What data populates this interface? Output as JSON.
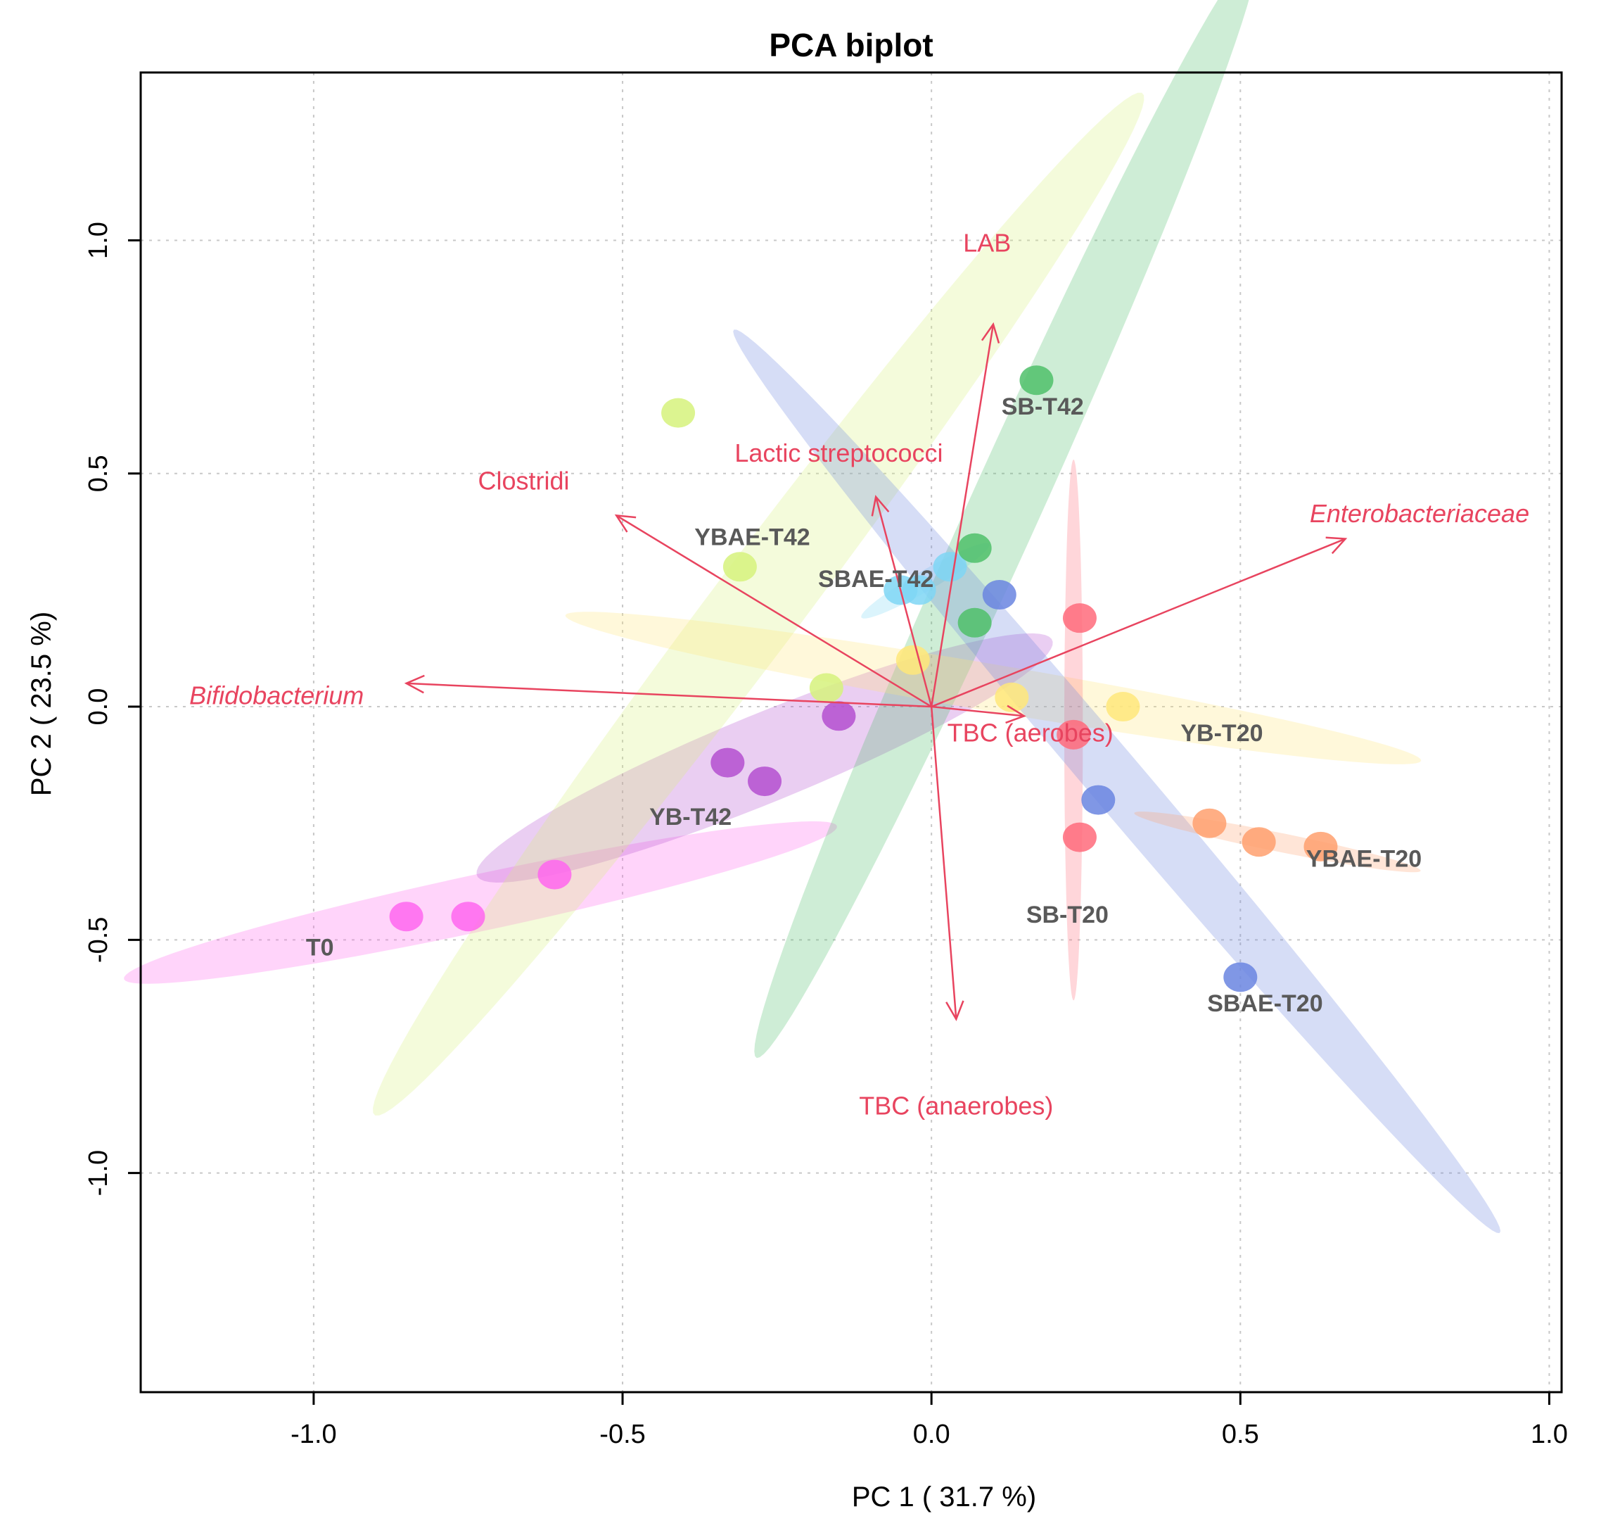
{
  "chart_data": {
    "type": "scatter",
    "subtype": "pca-biplot",
    "title": "PCA biplot",
    "xlabel": "PC 1 ( 31.7 %)",
    "ylabel": "PC 2 ( 23.5 %)",
    "xlim": [
      -1.28,
      1.02
    ],
    "ylim": [
      -1.47,
      1.36
    ],
    "xticks": [
      -1.0,
      -0.5,
      0.0,
      0.5,
      1.0
    ],
    "xtick_labels": [
      "-1.0",
      "-0.5",
      "0.0",
      "0.5",
      "1.0"
    ],
    "yticks": [
      -1.0,
      -0.5,
      0.0,
      0.5,
      1.0
    ],
    "ytick_labels": [
      "-1.0",
      "-0.5",
      "0.0",
      "0.5",
      "1.0"
    ],
    "grid": true,
    "arrow_color": "#e8445f",
    "groups": [
      {
        "name": "T0",
        "color": "#ff66ee",
        "points": [
          [
            -0.85,
            -0.45
          ],
          [
            -0.75,
            -0.45
          ],
          [
            -0.61,
            -0.36
          ]
        ],
        "ellipse": {
          "center": [
            -0.73,
            -0.42
          ],
          "semi_a": 0.6,
          "semi_b": 0.06,
          "angle_deg": 15.9
        },
        "label_pos": [
          -0.99,
          -0.52
        ]
      },
      {
        "name": "YB-T42",
        "color": "#b44fd0",
        "points": [
          [
            -0.33,
            -0.12
          ],
          [
            -0.27,
            -0.16
          ],
          [
            -0.15,
            -0.02
          ]
        ],
        "ellipse": {
          "center": [
            -0.27,
            -0.11
          ],
          "semi_a": 0.53,
          "semi_b": 0.09,
          "angle_deg": 28.8
        },
        "label_pos": [
          -0.39,
          -0.24
        ]
      },
      {
        "name": "YBAE-T42",
        "color": "#d6f27c",
        "points": [
          [
            -0.41,
            0.63
          ],
          [
            -0.31,
            0.3
          ],
          [
            -0.17,
            0.04
          ]
        ],
        "ellipse": {
          "center": [
            -0.28,
            0.22
          ],
          "semi_a": 1.26,
          "semi_b": 0.08,
          "angle_deg": 60.5
        },
        "label_pos": [
          -0.29,
          0.36
        ]
      },
      {
        "name": "SBAE-T42",
        "color": "#7fd6f5",
        "points": [
          [
            -0.05,
            0.25
          ],
          [
            -0.02,
            0.25
          ],
          [
            0.03,
            0.3
          ]
        ],
        "ellipse": {
          "center": [
            -0.01,
            0.27
          ],
          "semi_a": 0.13,
          "semi_b": 0.02,
          "angle_deg": 37.6
        },
        "label_pos": [
          -0.09,
          0.27
        ]
      },
      {
        "name": "SB-T42",
        "color": "#4fbf6a",
        "points": [
          [
            0.17,
            0.7
          ],
          [
            0.07,
            0.34
          ],
          [
            0.07,
            0.18
          ]
        ],
        "ellipse": {
          "center": [
            0.12,
            0.43
          ],
          "semi_a": 1.25,
          "semi_b": 0.06,
          "angle_deg": 71.2
        },
        "label_pos": [
          0.18,
          0.64
        ]
      },
      {
        "name": "YB-T20",
        "color": "#ffe77a",
        "points": [
          [
            -0.03,
            0.1
          ],
          [
            0.13,
            0.02
          ],
          [
            0.31,
            0.0
          ]
        ],
        "ellipse": {
          "center": [
            0.1,
            0.04
          ],
          "semi_a": 0.71,
          "semi_b": 0.05,
          "angle_deg": -12.7
        },
        "label_pos": [
          0.47,
          -0.06
        ]
      },
      {
        "name": "SB-T20",
        "color": "#ff6b7b",
        "points": [
          [
            0.24,
            0.19
          ],
          [
            0.23,
            -0.06
          ],
          [
            0.24,
            -0.28
          ]
        ],
        "ellipse": {
          "center": [
            0.23,
            -0.05
          ],
          "semi_a": 0.58,
          "semi_b": 0.015,
          "angle_deg": 90.0
        },
        "label_pos": [
          0.22,
          -0.45
        ]
      },
      {
        "name": "SBAE-T20",
        "color": "#6a85e0",
        "points": [
          [
            0.11,
            0.24
          ],
          [
            0.27,
            -0.2
          ],
          [
            0.5,
            -0.58
          ]
        ],
        "ellipse": {
          "center": [
            0.3,
            -0.16
          ],
          "semi_a": 1.15,
          "semi_b": 0.05,
          "angle_deg": -57.4
        },
        "label_pos": [
          0.54,
          -0.64
        ]
      },
      {
        "name": "YBAE-T20",
        "color": "#ffa06e",
        "points": [
          [
            0.45,
            -0.25
          ],
          [
            0.53,
            -0.29
          ],
          [
            0.63,
            -0.3
          ]
        ],
        "ellipse": {
          "center": [
            0.56,
            -0.29
          ],
          "semi_a": 0.24,
          "semi_b": 0.02,
          "angle_deg": -15.0
        },
        "label_pos": [
          0.7,
          -0.33
        ]
      }
    ],
    "loadings": [
      {
        "name": "LAB",
        "end": [
          0.1,
          0.82
        ],
        "label_pos": [
          0.09,
          0.99
        ],
        "italic": false
      },
      {
        "name": "Lactic streptococci",
        "end": [
          -0.09,
          0.45
        ],
        "label_pos": [
          -0.15,
          0.54
        ],
        "italic": false
      },
      {
        "name": "Clostridi",
        "end": [
          -0.51,
          0.41
        ],
        "label_pos": [
          -0.66,
          0.48
        ],
        "italic": false
      },
      {
        "name": "Enterobacteriaceae",
        "end": [
          0.67,
          0.36
        ],
        "label_pos": [
          0.79,
          0.41
        ],
        "italic": true
      },
      {
        "name": "Bifidobacterium",
        "end": [
          -0.85,
          0.05
        ],
        "label_pos": [
          -1.06,
          0.02
        ],
        "italic": true
      },
      {
        "name": "TBC (aerobes)",
        "end": [
          0.15,
          -0.02
        ],
        "label_pos": [
          0.16,
          -0.06
        ],
        "italic": false
      },
      {
        "name": "TBC (anaerobes)",
        "end": [
          0.04,
          -0.67
        ],
        "label_pos": [
          0.04,
          -0.86
        ],
        "italic": false
      }
    ]
  }
}
